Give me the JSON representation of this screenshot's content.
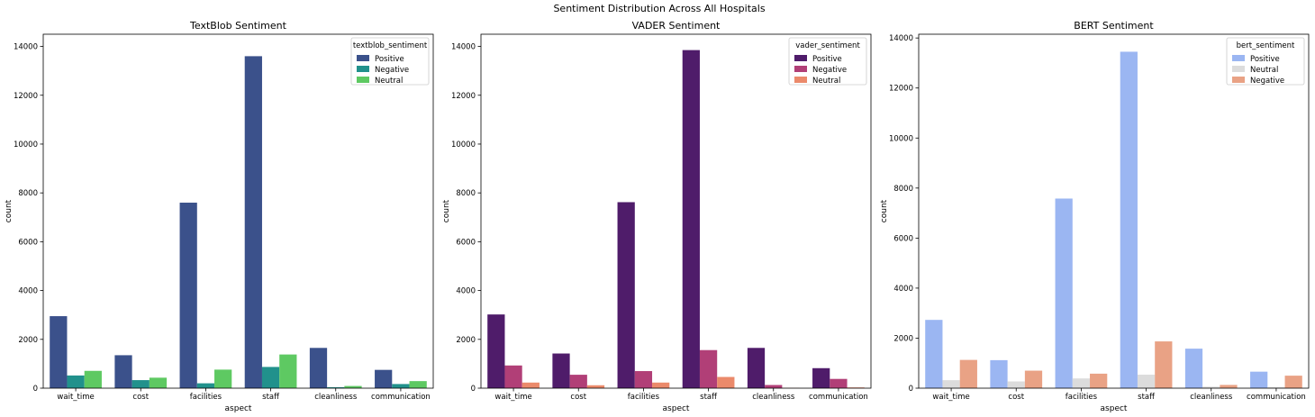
{
  "figure": {
    "suptitle": "Sentiment Distribution Across All Hospitals"
  },
  "chart_data": [
    {
      "type": "bar",
      "title": "TextBlob Sentiment",
      "xlabel": "aspect",
      "ylabel": "count",
      "categories": [
        "wait_time",
        "cost",
        "facilities",
        "staff",
        "cleanliness",
        "communication"
      ],
      "ylim": [
        0,
        14500
      ],
      "yticks": [
        0,
        2000,
        4000,
        6000,
        8000,
        10000,
        12000,
        14000
      ],
      "legend_title": "textblob_sentiment",
      "legend_position": "top-right",
      "series": [
        {
          "name": "Positive",
          "color": "#3b518b",
          "values": [
            2950,
            1350,
            7600,
            13600,
            1650,
            750
          ]
        },
        {
          "name": "Negative",
          "color": "#21918c",
          "values": [
            520,
            330,
            200,
            870,
            40,
            170
          ]
        },
        {
          "name": "Neutral",
          "color": "#5ec962",
          "values": [
            710,
            430,
            760,
            1380,
            90,
            290
          ]
        }
      ]
    },
    {
      "type": "bar",
      "title": "VADER Sentiment",
      "xlabel": "aspect",
      "ylabel": "count",
      "categories": [
        "wait_time",
        "cost",
        "facilities",
        "staff",
        "cleanliness",
        "communication"
      ],
      "ylim": [
        0,
        14500
      ],
      "yticks": [
        0,
        2000,
        4000,
        6000,
        8000,
        10000,
        12000,
        14000
      ],
      "legend_title": "vader_sentiment",
      "legend_position": "top-right",
      "series": [
        {
          "name": "Positive",
          "color": "#4f1c6a",
          "values": [
            3020,
            1420,
            7620,
            13850,
            1650,
            820
          ]
        },
        {
          "name": "Negative",
          "color": "#b13f77",
          "values": [
            930,
            550,
            700,
            1560,
            130,
            380
          ]
        },
        {
          "name": "Neutral",
          "color": "#eb8a6b",
          "values": [
            230,
            120,
            230,
            460,
            10,
            30
          ]
        }
      ]
    },
    {
      "type": "bar",
      "title": "BERT Sentiment",
      "xlabel": "aspect",
      "ylabel": "count",
      "categories": [
        "wait_time",
        "cost",
        "facilities",
        "staff",
        "cleanliness",
        "communication"
      ],
      "ylim": [
        0,
        14150
      ],
      "yticks": [
        0,
        2000,
        4000,
        6000,
        8000,
        10000,
        12000,
        14000
      ],
      "legend_title": "bert_sentiment",
      "legend_position": "top-right",
      "series": [
        {
          "name": "Positive",
          "color": "#9bb6f2",
          "values": [
            2730,
            1120,
            7580,
            13450,
            1580,
            660
          ]
        },
        {
          "name": "Neutral",
          "color": "#dcdcdc",
          "values": [
            320,
            270,
            390,
            540,
            60,
            40
          ]
        },
        {
          "name": "Negative",
          "color": "#e9a285",
          "values": [
            1130,
            700,
            580,
            1870,
            130,
            500
          ]
        }
      ]
    }
  ]
}
